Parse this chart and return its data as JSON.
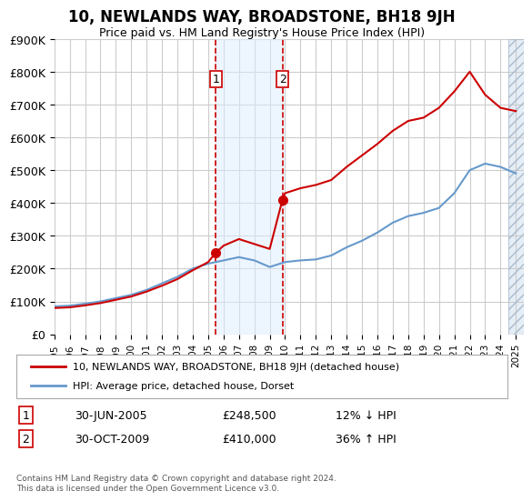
{
  "title": "10, NEWLANDS WAY, BROADSTONE, BH18 9JH",
  "subtitle": "Price paid vs. HM Land Registry's House Price Index (HPI)",
  "ylabel": "",
  "ylim": [
    0,
    900000
  ],
  "yticks": [
    0,
    100000,
    200000,
    300000,
    400000,
    500000,
    600000,
    700000,
    800000,
    900000
  ],
  "xlim_start": 1995.0,
  "xlim_end": 2025.5,
  "transaction1": {
    "date": 2005.5,
    "price": 248500,
    "label": "1"
  },
  "transaction2": {
    "date": 2009.83,
    "price": 410000,
    "label": "2"
  },
  "legend_property_label": "10, NEWLANDS WAY, BROADSTONE, BH18 9JH (detached house)",
  "legend_hpi_label": "HPI: Average price, detached house, Dorset",
  "table_row1": [
    "1",
    "30-JUN-2005",
    "£248,500",
    "12% ↓ HPI"
  ],
  "table_row2": [
    "2",
    "30-OCT-2009",
    "£410,000",
    "36% ↑ HPI"
  ],
  "footnote": "Contains HM Land Registry data © Crown copyright and database right 2024.\nThis data is licensed under the Open Government Licence v3.0.",
  "property_color": "#cc0000",
  "hpi_color": "#6699cc",
  "hatch_color": "#ccddee",
  "grid_color": "#cccccc",
  "background_color": "#ffffff",
  "hpi_years": [
    1995,
    1996,
    1997,
    1998,
    1999,
    2000,
    2001,
    2002,
    2003,
    2004,
    2005,
    2006,
    2007,
    2008,
    2009,
    2010,
    2011,
    2012,
    2013,
    2014,
    2015,
    2016,
    2017,
    2018,
    2019,
    2020,
    2021,
    2022,
    2023,
    2024,
    2025
  ],
  "hpi_values": [
    85000,
    87000,
    93000,
    100000,
    110000,
    120000,
    135000,
    155000,
    175000,
    200000,
    215000,
    225000,
    235000,
    225000,
    205000,
    220000,
    225000,
    228000,
    240000,
    265000,
    285000,
    310000,
    340000,
    360000,
    370000,
    385000,
    430000,
    500000,
    520000,
    510000,
    490000
  ],
  "property_years": [
    1995,
    1996,
    1997,
    1998,
    1999,
    2000,
    2001,
    2002,
    2003,
    2004,
    2005,
    2005.5,
    2006,
    2007,
    2008,
    2009,
    2009.83,
    2010,
    2011,
    2012,
    2013,
    2014,
    2015,
    2016,
    2017,
    2018,
    2019,
    2020,
    2021,
    2022,
    2023,
    2024,
    2025
  ],
  "property_values": [
    80000,
    82000,
    88000,
    95000,
    105000,
    115000,
    130000,
    148000,
    168000,
    195000,
    220000,
    248500,
    270000,
    290000,
    275000,
    260000,
    410000,
    430000,
    445000,
    455000,
    470000,
    510000,
    545000,
    580000,
    620000,
    650000,
    660000,
    690000,
    740000,
    800000,
    730000,
    690000,
    680000
  ]
}
